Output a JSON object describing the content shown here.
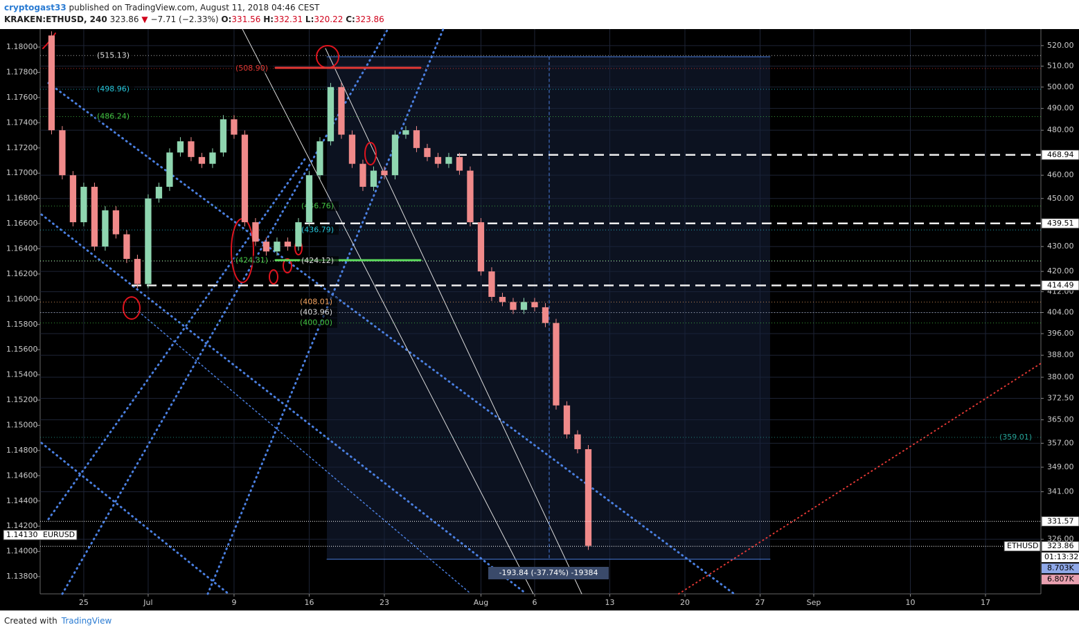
{
  "header": {
    "author": "cryptogast33",
    "published": "published on TradingView.com, August 11, 2018 04:46 CEST",
    "symbol": "KRAKEN:ETHUSD, 240",
    "last": "323.86",
    "arrow": "▼",
    "change": "−7.71 (−2.33%)",
    "ohlc": [
      {
        "key": "O:",
        "value": "331.56"
      },
      {
        "key": "H:",
        "value": "332.31"
      },
      {
        "key": "L:",
        "value": "320.22"
      },
      {
        "key": "C:",
        "value": "323.86"
      }
    ]
  },
  "chart_data": {
    "type": "candlestick",
    "log_scale": true,
    "grid": true,
    "up_color": "#8fd6b0",
    "down_color": "#f08a8a",
    "xticks": [
      {
        "value": 25,
        "label": "25"
      },
      {
        "value": 31,
        "label": "Jul"
      },
      {
        "value": 39,
        "label": "9"
      },
      {
        "value": 46,
        "label": "16"
      },
      {
        "value": 53,
        "label": "23"
      },
      {
        "value": 62,
        "label": "Aug"
      },
      {
        "value": 67,
        "label": "6"
      },
      {
        "value": 74,
        "label": "13"
      },
      {
        "value": 81,
        "label": "20"
      },
      {
        "value": 88,
        "label": "27"
      },
      {
        "value": 93,
        "label": "Sep"
      },
      {
        "value": 102,
        "label": "10"
      },
      {
        "value": 109,
        "label": "17"
      }
    ],
    "xlim": [
      20.94,
      114.16
    ],
    "x": [
      21,
      22,
      23,
      24,
      25,
      26,
      27,
      28,
      29,
      30,
      31,
      32,
      33,
      34,
      35,
      36,
      37,
      38,
      39,
      40,
      41,
      42,
      43,
      44,
      45,
      46,
      47,
      48,
      49,
      50,
      51,
      52,
      53,
      54,
      55,
      56,
      57,
      58,
      59,
      60,
      61,
      62,
      63,
      64,
      65,
      66,
      67,
      68,
      69,
      70,
      71,
      72
    ],
    "values": [
      525,
      480,
      460,
      440,
      455,
      430,
      445,
      435,
      425,
      415,
      450,
      455,
      470,
      475,
      468,
      465,
      470,
      485,
      478,
      440,
      432,
      428,
      432,
      430,
      440,
      460,
      475,
      500,
      478,
      465,
      455,
      462,
      460,
      478,
      480,
      472,
      468,
      465,
      468,
      462,
      440,
      420,
      410,
      408,
      405,
      408,
      406,
      400,
      370,
      360,
      355,
      324
    ],
    "ylim": [
      309.6,
      528.2
    ],
    "yticks": [
      {
        "value": 520,
        "label": "520.00"
      },
      {
        "value": 510,
        "label": "510.00"
      },
      {
        "value": 500,
        "label": "500.00"
      },
      {
        "value": 490,
        "label": "490.00"
      },
      {
        "value": 480,
        "label": "480.00"
      },
      {
        "value": 460,
        "label": "460.00"
      },
      {
        "value": 450,
        "label": "450.00"
      },
      {
        "value": 430,
        "label": "430.00"
      },
      {
        "value": 420,
        "label": "420.00"
      },
      {
        "value": 412,
        "label": "412.00"
      },
      {
        "value": 404,
        "label": "404.00"
      },
      {
        "value": 396,
        "label": "396.00"
      },
      {
        "value": 388,
        "label": "388.00"
      },
      {
        "value": 380,
        "label": "380.00"
      },
      {
        "value": 372.5,
        "label": "372.50"
      },
      {
        "value": 365,
        "label": "365.00"
      },
      {
        "value": 357,
        "label": "357.00"
      },
      {
        "value": 349,
        "label": "349.00"
      },
      {
        "value": 341,
        "label": "341.00"
      },
      {
        "value": 326,
        "label": "326.00"
      }
    ],
    "y2lim": [
      1.13663,
      1.18143
    ],
    "y2ticks": [
      {
        "value": 1.18,
        "label": "1.18000"
      },
      {
        "value": 1.178,
        "label": "1.17800"
      },
      {
        "value": 1.176,
        "label": "1.17600"
      },
      {
        "value": 1.174,
        "label": "1.17400"
      },
      {
        "value": 1.172,
        "label": "1.17200"
      },
      {
        "value": 1.17,
        "label": "1.17000"
      },
      {
        "value": 1.168,
        "label": "1.16800"
      },
      {
        "value": 1.166,
        "label": "1.16600"
      },
      {
        "value": 1.164,
        "label": "1.16400"
      },
      {
        "value": 1.162,
        "label": "1.16200"
      },
      {
        "value": 1.16,
        "label": "1.16000"
      },
      {
        "value": 1.158,
        "label": "1.15800"
      },
      {
        "value": 1.156,
        "label": "1.15600"
      },
      {
        "value": 1.154,
        "label": "1.15400"
      },
      {
        "value": 1.152,
        "label": "1.15200"
      },
      {
        "value": 1.15,
        "label": "1.15000"
      },
      {
        "value": 1.148,
        "label": "1.14800"
      },
      {
        "value": 1.146,
        "label": "1.14600"
      },
      {
        "value": 1.144,
        "label": "1.14400"
      },
      {
        "value": 1.142,
        "label": "1.14200"
      },
      {
        "value": 1.14,
        "label": "1.14000"
      },
      {
        "value": 1.138,
        "label": "1.13800"
      }
    ],
    "levels": [
      {
        "value": 515.13,
        "label": "(515.13)",
        "color": "#dddddd"
      },
      {
        "value": 508.9,
        "label": "(508.90)",
        "color": "#e53935"
      },
      {
        "value": 498.96,
        "label": "(498.96)",
        "color": "#26c6da"
      },
      {
        "value": 486.24,
        "label": "(486.24)",
        "color": "#43c443"
      },
      {
        "value": 446.76,
        "label": "(446.76)",
        "color": "#43c443"
      },
      {
        "value": 436.79,
        "label": "(436.79)",
        "color": "#26c6da"
      },
      {
        "value": 424.31,
        "label": "(424.31)",
        "color": "#43c443"
      },
      {
        "value": 424.12,
        "label": "(424.12)",
        "color": "#dddddd"
      },
      {
        "value": 408.01,
        "label": "(408.01)",
        "color": "#f4a460"
      },
      {
        "value": 403.96,
        "label": "(403.96)",
        "color": "#dddddd"
      },
      {
        "value": 400,
        "label": "(400.00)",
        "color": "#43c443"
      },
      {
        "value": 359.01,
        "label": "(359.01)",
        "color": "#26a69a"
      }
    ],
    "dashed_levels": [
      {
        "value": 468.94,
        "label": "468.94"
      },
      {
        "value": 439.51,
        "label": "439.51"
      },
      {
        "value": 414.49,
        "label": "414.49"
      }
    ],
    "price_tags": [
      {
        "value": 331.57,
        "label": "331.57"
      },
      {
        "value": 323.86,
        "label": "323.86",
        "symbol": "ETHUSD"
      }
    ],
    "countdown": "01:13:32",
    "volume_tags": [
      "8.703K",
      "6.807K"
    ],
    "overlay_tag": {
      "value": 1.1413,
      "label": "1.14130",
      "symbol": "EURUSD"
    },
    "measure": "-193.84 (-37.74%) -19384"
  },
  "footer": {
    "created": "Created with",
    "brand": "TradingView"
  }
}
